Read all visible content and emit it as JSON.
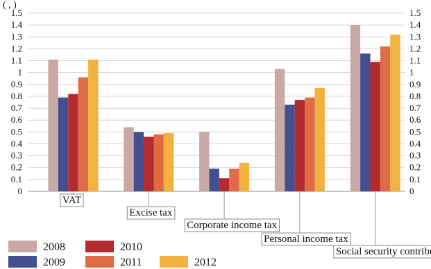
{
  "chart_data": {
    "type": "bar",
    "top_fragment": "(            ,                        )",
    "categories": [
      "VAT",
      "Excise tax",
      "Corporate income tax",
      "Personal income tax",
      "Social security contributions"
    ],
    "series": [
      {
        "name": "2008",
        "color": "#c9a9a6",
        "values": [
          1.11,
          0.54,
          0.5,
          1.03,
          1.4
        ]
      },
      {
        "name": "2009",
        "color": "#434f8f",
        "values": [
          0.79,
          0.5,
          0.19,
          0.73,
          1.16
        ]
      },
      {
        "name": "2010",
        "color": "#b52a2f",
        "values": [
          0.82,
          0.46,
          0.11,
          0.77,
          1.09
        ]
      },
      {
        "name": "2011",
        "color": "#df6c45",
        "values": [
          0.96,
          0.48,
          0.19,
          0.79,
          1.22
        ]
      },
      {
        "name": "2012",
        "color": "#f1b23f",
        "values": [
          1.11,
          0.49,
          0.24,
          0.87,
          1.32
        ]
      }
    ],
    "y_ticks": [
      "0",
      "0.1",
      "0.2",
      "0.3",
      "0.4",
      "0.5",
      "0.6",
      "0.7",
      "0.8",
      "0.9",
      "1",
      "1.1",
      "1.2",
      "1.3",
      "1.4",
      "1.5"
    ],
    "ylim": [
      0,
      1.5
    ],
    "grid": true,
    "legend_position": "bottom-left",
    "secondary_y_axis": "right"
  }
}
